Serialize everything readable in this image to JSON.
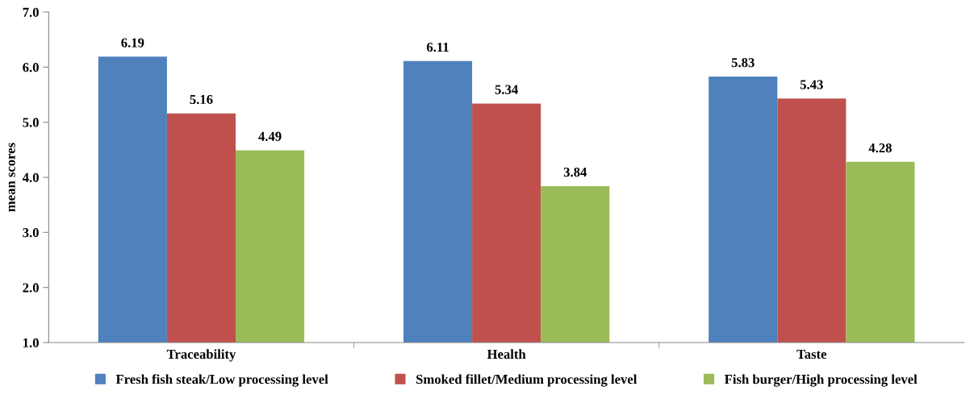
{
  "chart_data": {
    "type": "bar",
    "ylabel": "mean scores",
    "categories": [
      "Traceability",
      "Health",
      "Taste"
    ],
    "series": [
      {
        "name": "Fresh fish steak/Low processing level",
        "color": "#4f81bd",
        "values": [
          6.19,
          6.11,
          5.83
        ]
      },
      {
        "name": "Smoked fillet/Medium processing level",
        "color": "#c0504d",
        "values": [
          5.16,
          5.34,
          5.43
        ]
      },
      {
        "name": "Fish burger/High processing level",
        "color": "#9bbb59",
        "values": [
          4.49,
          3.84,
          4.28
        ]
      }
    ],
    "ylim": [
      1.0,
      7.0
    ],
    "yticks": [
      {
        "value": 1,
        "label": "1.0"
      },
      {
        "value": 2,
        "label": "2.0"
      },
      {
        "value": 3,
        "label": "3.0"
      },
      {
        "value": 4,
        "label": "4.0"
      },
      {
        "value": 5,
        "label": "5.0"
      },
      {
        "value": 6,
        "label": "6.0"
      },
      {
        "value": 7,
        "label": "7.0"
      }
    ],
    "data_labels": true,
    "grid": false,
    "legend": "bottom"
  }
}
